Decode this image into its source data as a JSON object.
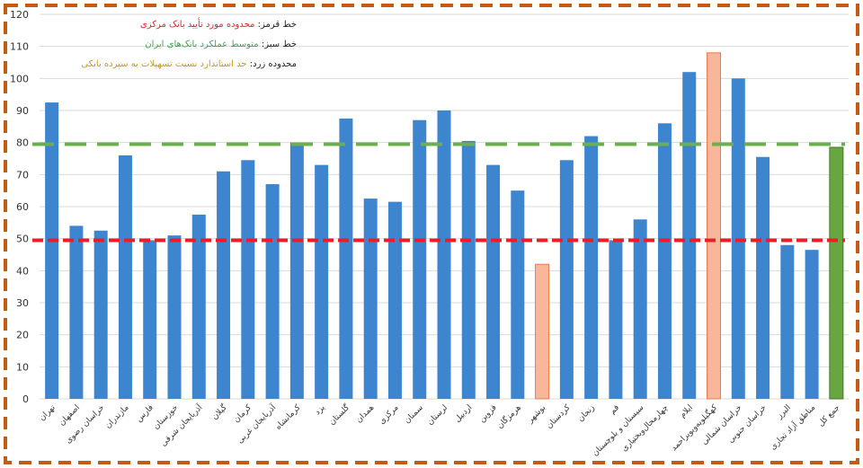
{
  "colors": {
    "bar": "#3d86cf",
    "bar_highlight": "#f8b79b",
    "bar_highlight_stroke": "#ea7a4c",
    "bar_total": "#6aa640",
    "bar_total_stroke": "#3f7a23",
    "red_line": "#ee1c25",
    "green_line": "#6ab04c",
    "border": "#c55a11",
    "grid": "#d9d9d9",
    "legend_red": "#ee1c25",
    "legend_green": "#3fa34d",
    "legend_yellow": "#c99a1a"
  },
  "legend": [
    {
      "label": "خط قرمز:",
      "value": "محدوده مورد تأیید بانک مرکزی",
      "color_key": "legend_red"
    },
    {
      "label": "خط سبز:",
      "value": "متوسط عملکرد بانک‌های ایران",
      "color_key": "legend_green"
    },
    {
      "label": "محدوده زرد:",
      "value": "حد استاندارد نسبت تسهیلات به سپرده بانکی",
      "color_key": "legend_yellow"
    }
  ],
  "chart_data": {
    "type": "bar",
    "title": "",
    "xlabel": "",
    "ylabel": "",
    "ylim": [
      0,
      120
    ],
    "yticks": [
      0,
      10,
      20,
      30,
      40,
      50,
      60,
      70,
      80,
      90,
      100,
      110,
      120
    ],
    "categories": [
      "تهران",
      "اصفهان",
      "خراسان رضوی",
      "مازندران",
      "فارس",
      "خوزستان",
      "آذربایجان شرقی",
      "گیلان",
      "کرمان",
      "آذربایجان غربی",
      "کرمانشاه",
      "یزد",
      "گلستان",
      "همدان",
      "مرکزی",
      "سمنان",
      "لرستان",
      "اردبیل",
      "قزوین",
      "هرمزگان",
      "بوشهر",
      "کردستان",
      "زنجان",
      "قم",
      "سیستان و بلوچستان",
      "چهارمحال‌وبختیاری",
      "ایلام",
      "کهگیلویه‌وبویراحمد",
      "خراسان شمالی",
      "خراسان جنوبی",
      "البرز",
      "مناطق آزاد تجاری",
      "جمع کل"
    ],
    "values": [
      92.5,
      54,
      52.5,
      76,
      49.5,
      51,
      57.5,
      71,
      74.5,
      67,
      80,
      73,
      87.5,
      62.5,
      61.5,
      87,
      90,
      80.5,
      73,
      65,
      42,
      74.5,
      82,
      49.5,
      56,
      86,
      102,
      108,
      100,
      75.5,
      48,
      46.5,
      78.5
    ],
    "highlight": [
      "normal",
      "normal",
      "normal",
      "normal",
      "normal",
      "normal",
      "normal",
      "normal",
      "normal",
      "normal",
      "normal",
      "normal",
      "normal",
      "normal",
      "normal",
      "normal",
      "normal",
      "normal",
      "normal",
      "normal",
      "orange",
      "normal",
      "normal",
      "normal",
      "normal",
      "normal",
      "normal",
      "orange",
      "normal",
      "normal",
      "normal",
      "normal",
      "green"
    ],
    "reference_lines": [
      {
        "name": "red",
        "value": 49.5,
        "style": "dashed"
      },
      {
        "name": "green",
        "value": 79.5,
        "style": "dashed"
      }
    ],
    "grid": true,
    "legend_position": "top-left"
  }
}
